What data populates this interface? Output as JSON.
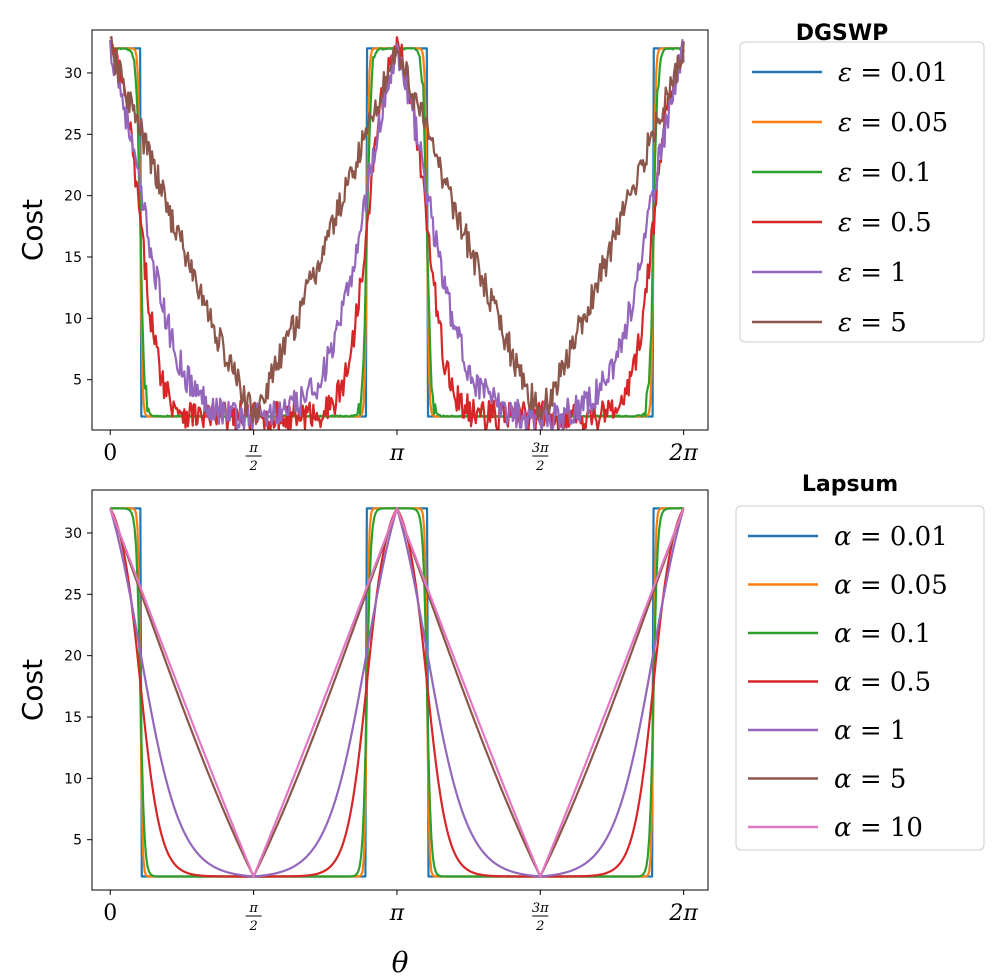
{
  "chart_data": [
    {
      "type": "line",
      "title": "DGSWP",
      "xlabel": "",
      "ylabel": "Cost",
      "xlim": [
        -0.2,
        6.55
      ],
      "ylim": [
        0.9,
        33.5
      ],
      "yticks": [
        5,
        10,
        15,
        20,
        25,
        30
      ],
      "xticks": [
        {
          "value": 0,
          "label": "0"
        },
        {
          "value": 1.5708,
          "label": "π/2",
          "num": "π",
          "den": "2"
        },
        {
          "value": 3.1416,
          "label": "π"
        },
        {
          "value": 4.7124,
          "label": "3π/2",
          "num": "3π",
          "den": "2"
        },
        {
          "value": 6.2832,
          "label": "2π"
        }
      ],
      "legend_placement": "outside-right",
      "noise": true,
      "series": [
        {
          "name": "ε = 0.01",
          "symbol": "ε",
          "value_label": "0.01",
          "param": 0.01,
          "color": "#1f77b4",
          "noise_amp": 0.0
        },
        {
          "name": "ε = 0.05",
          "symbol": "ε",
          "value_label": "0.05",
          "param": 0.05,
          "color": "#ff7f0e",
          "noise_amp": 0.0
        },
        {
          "name": "ε = 0.1",
          "symbol": "ε",
          "value_label": "0.1",
          "param": 0.1,
          "color": "#2ca02c",
          "noise_amp": 0.6
        },
        {
          "name": "ε = 0.5",
          "symbol": "ε",
          "value_label": "0.5",
          "param": 0.5,
          "color": "#d62728",
          "noise_amp": 0.9
        },
        {
          "name": "ε = 1",
          "symbol": "ε",
          "value_label": "1",
          "param": 1,
          "color": "#9467bd",
          "noise_amp": 0.9
        },
        {
          "name": "ε = 5",
          "symbol": "ε",
          "value_label": "5",
          "param": 5,
          "color": "#8c564b",
          "noise_amp": 0.9
        }
      ]
    },
    {
      "type": "line",
      "title": "Lapsum",
      "xlabel": "θ",
      "ylabel": "Cost",
      "xlim": [
        -0.2,
        6.55
      ],
      "ylim": [
        0.9,
        33.5
      ],
      "yticks": [
        5,
        10,
        15,
        20,
        25,
        30
      ],
      "xticks": [
        {
          "value": 0,
          "label": "0"
        },
        {
          "value": 1.5708,
          "label": "π/2",
          "num": "π",
          "den": "2"
        },
        {
          "value": 3.1416,
          "label": "π"
        },
        {
          "value": 4.7124,
          "label": "3π/2",
          "num": "3π",
          "den": "2"
        },
        {
          "value": 6.2832,
          "label": "2π"
        }
      ],
      "legend_placement": "outside-right",
      "noise": false,
      "series": [
        {
          "name": "α = 0.01",
          "symbol": "α",
          "value_label": "0.01",
          "param": 0.01,
          "color": "#1f77b4"
        },
        {
          "name": "α = 0.05",
          "symbol": "α",
          "value_label": "0.05",
          "param": 0.05,
          "color": "#ff7f0e"
        },
        {
          "name": "α = 0.1",
          "symbol": "α",
          "value_label": "0.1",
          "param": 0.1,
          "color": "#2ca02c"
        },
        {
          "name": "α = 0.5",
          "symbol": "α",
          "value_label": "0.5",
          "param": 0.5,
          "color": "#d62728"
        },
        {
          "name": "α = 1",
          "symbol": "α",
          "value_label": "1",
          "param": 1,
          "color": "#9467bd"
        },
        {
          "name": "α = 5",
          "symbol": "α",
          "value_label": "5",
          "param": 5,
          "color": "#8c564b"
        },
        {
          "name": "α = 10",
          "symbol": "α",
          "value_label": "10",
          "param": 10,
          "color": "#e377c2"
        }
      ]
    }
  ]
}
